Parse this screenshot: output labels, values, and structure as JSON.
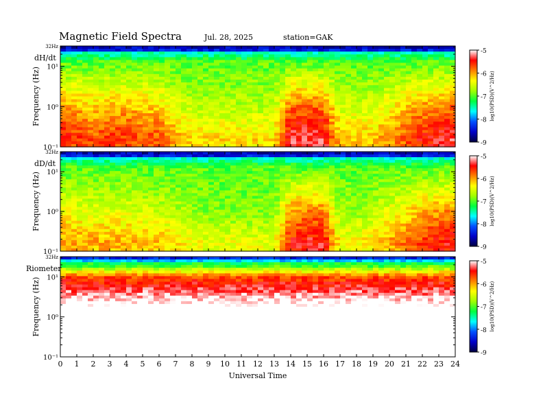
{
  "header": {
    "title": "Magnetic Field Spectra",
    "date": "Jul. 28, 2025",
    "station": "station=GAK"
  },
  "colors": {
    "colormap": [
      "#000040",
      "#0000c8",
      "#0050ff",
      "#00ffff",
      "#00ff40",
      "#a0ff00",
      "#ffff00",
      "#ff8000",
      "#ff0000",
      "#ffffff"
    ]
  },
  "chart_data": [
    {
      "type": "heatmap",
      "panel_label": "dH/dt",
      "ylabel": "Frequency (Hz)",
      "y_scale": "log",
      "y_ticks": [
        "10⁻¹",
        "10⁰",
        "10¹"
      ],
      "y_top_label": "32Hz",
      "xlabel": "",
      "xlim": [
        0,
        24
      ],
      "color_scale": {
        "label": "log10(PSD)(V^2/Hz)",
        "range": [
          -9,
          -5
        ],
        "ticks": [
          "-5",
          "-6",
          "-7",
          "-8",
          "-9"
        ]
      },
      "low_freq_level_by_hour": [
        -5.6,
        -5.7,
        -5.8,
        -5.7,
        -5.7,
        -5.8,
        -5.8,
        -6.1,
        -6.3,
        -6.3,
        -6.3,
        -6.3,
        -6.3,
        -6.3,
        -5.4,
        -5.4,
        -5.4,
        -6.2,
        -6.2,
        -6.2,
        -6.0,
        -5.8,
        -5.6,
        -5.5,
        -5.4
      ]
    },
    {
      "type": "heatmap",
      "panel_label": "dD/dt",
      "ylabel": "Frequency (Hz)",
      "y_scale": "log",
      "y_ticks": [
        "10⁻¹",
        "10⁰",
        "10¹"
      ],
      "y_top_label": "32Hz",
      "xlabel": "",
      "xlim": [
        0,
        24
      ],
      "color_scale": {
        "label": "log10(PSD)(V^2/Hz)",
        "range": [
          -9,
          -5
        ],
        "ticks": [
          "-5",
          "-6",
          "-7",
          "-8",
          "-9"
        ]
      },
      "low_freq_level_by_hour": [
        -6.0,
        -6.1,
        -6.1,
        -6.1,
        -6.1,
        -6.2,
        -6.2,
        -6.3,
        -6.4,
        -6.5,
        -6.5,
        -6.5,
        -6.5,
        -6.5,
        -5.6,
        -5.5,
        -5.5,
        -6.4,
        -6.4,
        -6.3,
        -6.1,
        -5.9,
        -5.7,
        -5.6,
        -5.5
      ]
    },
    {
      "type": "heatmap",
      "panel_label": "Riometer",
      "ylabel": "Frequency (Hz)",
      "y_scale": "log",
      "y_ticks": [
        "10⁻¹",
        "10⁰",
        "10¹"
      ],
      "y_top_label": "32Hz",
      "xlabel": "Universal Time",
      "xlim": [
        0,
        24
      ],
      "x_ticks": [
        "0",
        "1",
        "2",
        "3",
        "4",
        "5",
        "6",
        "7",
        "8",
        "9",
        "10",
        "11",
        "12",
        "13",
        "14",
        "15",
        "16",
        "17",
        "18",
        "19",
        "20",
        "21",
        "22",
        "23",
        "24"
      ],
      "color_scale": {
        "label": "log10(PSD)(V^2/Hz)",
        "range": [
          -9,
          -5
        ],
        "ticks": [
          "-5",
          "-6",
          "-7",
          "-8",
          "-9"
        ]
      },
      "low_freq_level_by_hour": [
        -4.8,
        -4.8,
        -4.8,
        -4.8,
        -4.8,
        -4.8,
        -4.8,
        -4.8,
        -4.8,
        -4.8,
        -4.8,
        -4.8,
        -4.8,
        -4.8,
        -4.8,
        -4.8,
        -4.8,
        -4.8,
        -4.8,
        -4.8,
        -4.8,
        -4.8,
        -4.8,
        -4.8,
        -4.8
      ]
    }
  ]
}
